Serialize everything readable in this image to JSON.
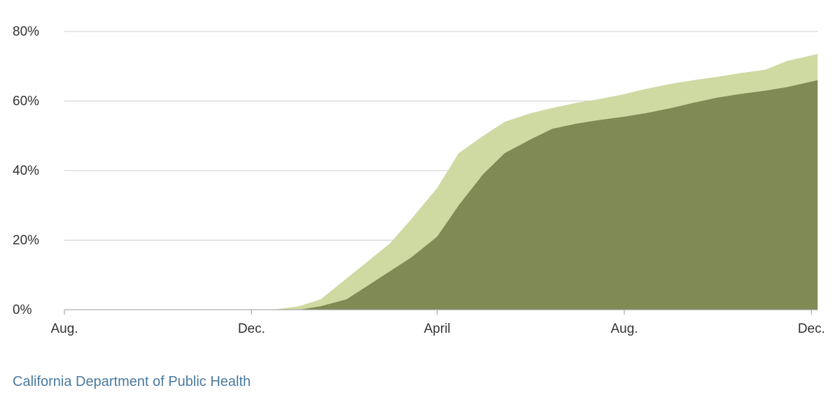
{
  "chart_data": {
    "type": "area",
    "title": "",
    "xlabel": "",
    "ylabel": "",
    "x_ticks": [
      {
        "date": "2020-08-01",
        "label": "Aug."
      },
      {
        "date": "2020-12-01",
        "label": "Dec."
      },
      {
        "date": "2021-04-01",
        "label": "April"
      },
      {
        "date": "2021-08-01",
        "label": "Aug."
      },
      {
        "date": "2021-12-01",
        "label": "Dec."
      }
    ],
    "y_ticks": [
      0,
      20,
      40,
      60,
      80
    ],
    "y_tick_suffix": "%",
    "xlim": [
      "2020-08-01",
      "2021-12-05"
    ],
    "ylim": [
      0,
      80
    ],
    "grid": true,
    "legend": "none",
    "series": [
      {
        "color": "#cfdaa3",
        "points": [
          [
            "2020-12-15",
            0
          ],
          [
            "2021-01-01",
            1
          ],
          [
            "2021-01-15",
            3
          ],
          [
            "2021-02-01",
            9
          ],
          [
            "2021-02-15",
            14
          ],
          [
            "2021-03-01",
            19
          ],
          [
            "2021-03-15",
            26
          ],
          [
            "2021-04-01",
            35
          ],
          [
            "2021-04-15",
            45
          ],
          [
            "2021-05-01",
            50
          ],
          [
            "2021-05-15",
            54
          ],
          [
            "2021-06-01",
            56.5
          ],
          [
            "2021-06-15",
            58
          ],
          [
            "2021-07-01",
            59.5
          ],
          [
            "2021-07-15",
            60.5
          ],
          [
            "2021-08-01",
            62
          ],
          [
            "2021-08-15",
            63.5
          ],
          [
            "2021-09-01",
            65
          ],
          [
            "2021-09-15",
            66
          ],
          [
            "2021-10-01",
            67
          ],
          [
            "2021-10-15",
            68
          ],
          [
            "2021-11-01",
            69
          ],
          [
            "2021-11-15",
            71.5
          ],
          [
            "2021-12-05",
            73.5
          ]
        ]
      },
      {
        "color": "#808a55",
        "points": [
          [
            "2021-01-01",
            0
          ],
          [
            "2021-01-15",
            1
          ],
          [
            "2021-02-01",
            3
          ],
          [
            "2021-02-15",
            7
          ],
          [
            "2021-03-01",
            11
          ],
          [
            "2021-03-15",
            15
          ],
          [
            "2021-04-01",
            21
          ],
          [
            "2021-04-15",
            30
          ],
          [
            "2021-05-01",
            39
          ],
          [
            "2021-05-15",
            45
          ],
          [
            "2021-06-01",
            49
          ],
          [
            "2021-06-15",
            52
          ],
          [
            "2021-07-01",
            53.5
          ],
          [
            "2021-07-15",
            54.5
          ],
          [
            "2021-08-01",
            55.5
          ],
          [
            "2021-08-15",
            56.5
          ],
          [
            "2021-09-01",
            58
          ],
          [
            "2021-09-15",
            59.5
          ],
          [
            "2021-10-01",
            61
          ],
          [
            "2021-10-15",
            62
          ],
          [
            "2021-11-01",
            63
          ],
          [
            "2021-11-15",
            64
          ],
          [
            "2021-12-05",
            66
          ]
        ]
      }
    ]
  },
  "source": "California Department of Public Health"
}
